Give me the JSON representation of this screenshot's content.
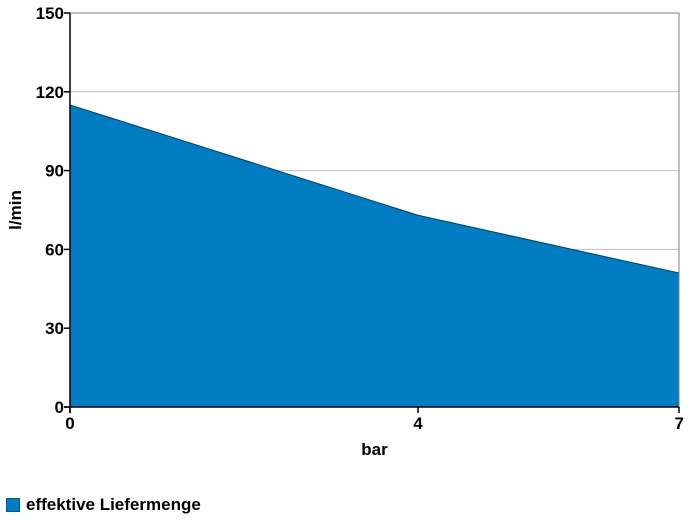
{
  "chart_data": {
    "type": "area",
    "xlabel": "bar",
    "ylabel": "l/min",
    "x_ticks": [
      0,
      4,
      7
    ],
    "y_ticks": [
      0,
      30,
      60,
      90,
      120,
      150
    ],
    "xlim": [
      0,
      7
    ],
    "ylim": [
      0,
      150
    ],
    "grid": "horizontal",
    "legend_position": "bottom-left",
    "series": [
      {
        "name": "effektive Liefermenge",
        "color": "#007cc3",
        "x": [
          0,
          4,
          7
        ],
        "y": [
          115,
          73,
          51
        ]
      }
    ]
  }
}
